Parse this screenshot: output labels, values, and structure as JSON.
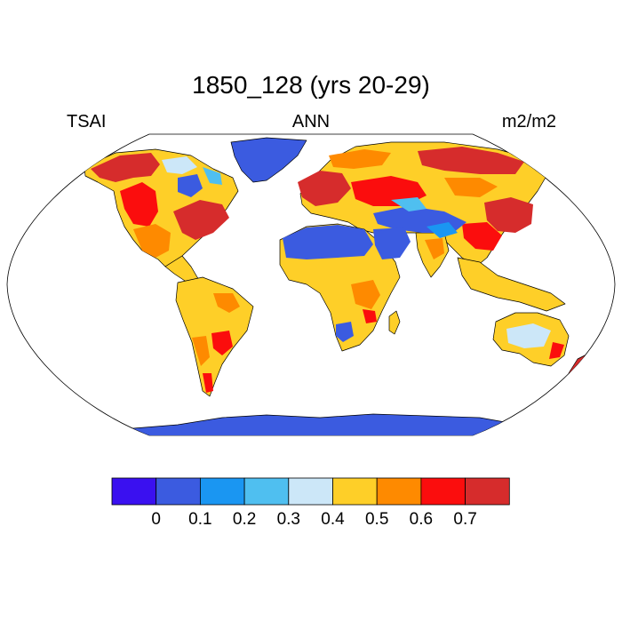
{
  "title": "1850_128 (yrs 20-29)",
  "left_label": "TSAI",
  "center_label": "ANN",
  "right_label": "m2/m2",
  "colorbar": {
    "colors": [
      "#3a10f0",
      "#3b5be0",
      "#1a96f2",
      "#4fbff0",
      "#cce7f8",
      "#fecf28",
      "#fe8a00",
      "#fb0d0d",
      "#d62c2c"
    ],
    "labels": [
      "0",
      "0.1",
      "0.2",
      "0.3",
      "0.4",
      "0.5",
      "0.6",
      "0.7"
    ]
  },
  "palette": {
    "ocean": "#ffffff",
    "outline": "#000000",
    "ice": "#3b5be0"
  }
}
